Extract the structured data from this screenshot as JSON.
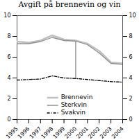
{
  "chart_data": {
    "type": "line",
    "title": "Avgift på brennevin og vin",
    "x": [
      1995,
      1996,
      1997,
      1998,
      1999,
      2000,
      2001,
      2002,
      2003,
      2004
    ],
    "series": [
      {
        "name": "Brennevin",
        "color": "#c0c0c0",
        "line_style": "solid",
        "values": [
          7.5,
          7.4,
          7.6,
          8.1,
          7.7,
          7.6,
          7.3,
          6.6,
          5.5,
          5.4
        ]
      },
      {
        "name": "Sterkvin",
        "color": "#909090",
        "line_style": "solid",
        "values": [
          7.3,
          7.3,
          7.5,
          7.9,
          7.6,
          7.55,
          7.2,
          6.4,
          5.4,
          5.3
        ]
      },
      {
        "name": "Svakvin",
        "color": "#000000",
        "line_style": "dashdot",
        "values": [
          3.8,
          3.85,
          3.9,
          4.2,
          4.0,
          3.95,
          3.85,
          3.75,
          3.65,
          3.6
        ]
      }
    ],
    "drop_lines": [
      {
        "x": 2000,
        "y1": 3.95,
        "y2": 7.55,
        "color": "#444444"
      }
    ],
    "xlim": [
      1995,
      2004
    ],
    "xticks": [
      1995,
      1996,
      1997,
      1998,
      1999,
      2000,
      2001,
      2002,
      2003,
      2004
    ],
    "ylim": [
      0,
      10
    ],
    "yticks": [
      0,
      2,
      4,
      6,
      8,
      10
    ],
    "y2lim": [
      0,
      10
    ],
    "y2ticks": [
      0,
      2,
      4,
      6,
      8,
      10
    ],
    "grid": false,
    "legend": "lower center"
  }
}
